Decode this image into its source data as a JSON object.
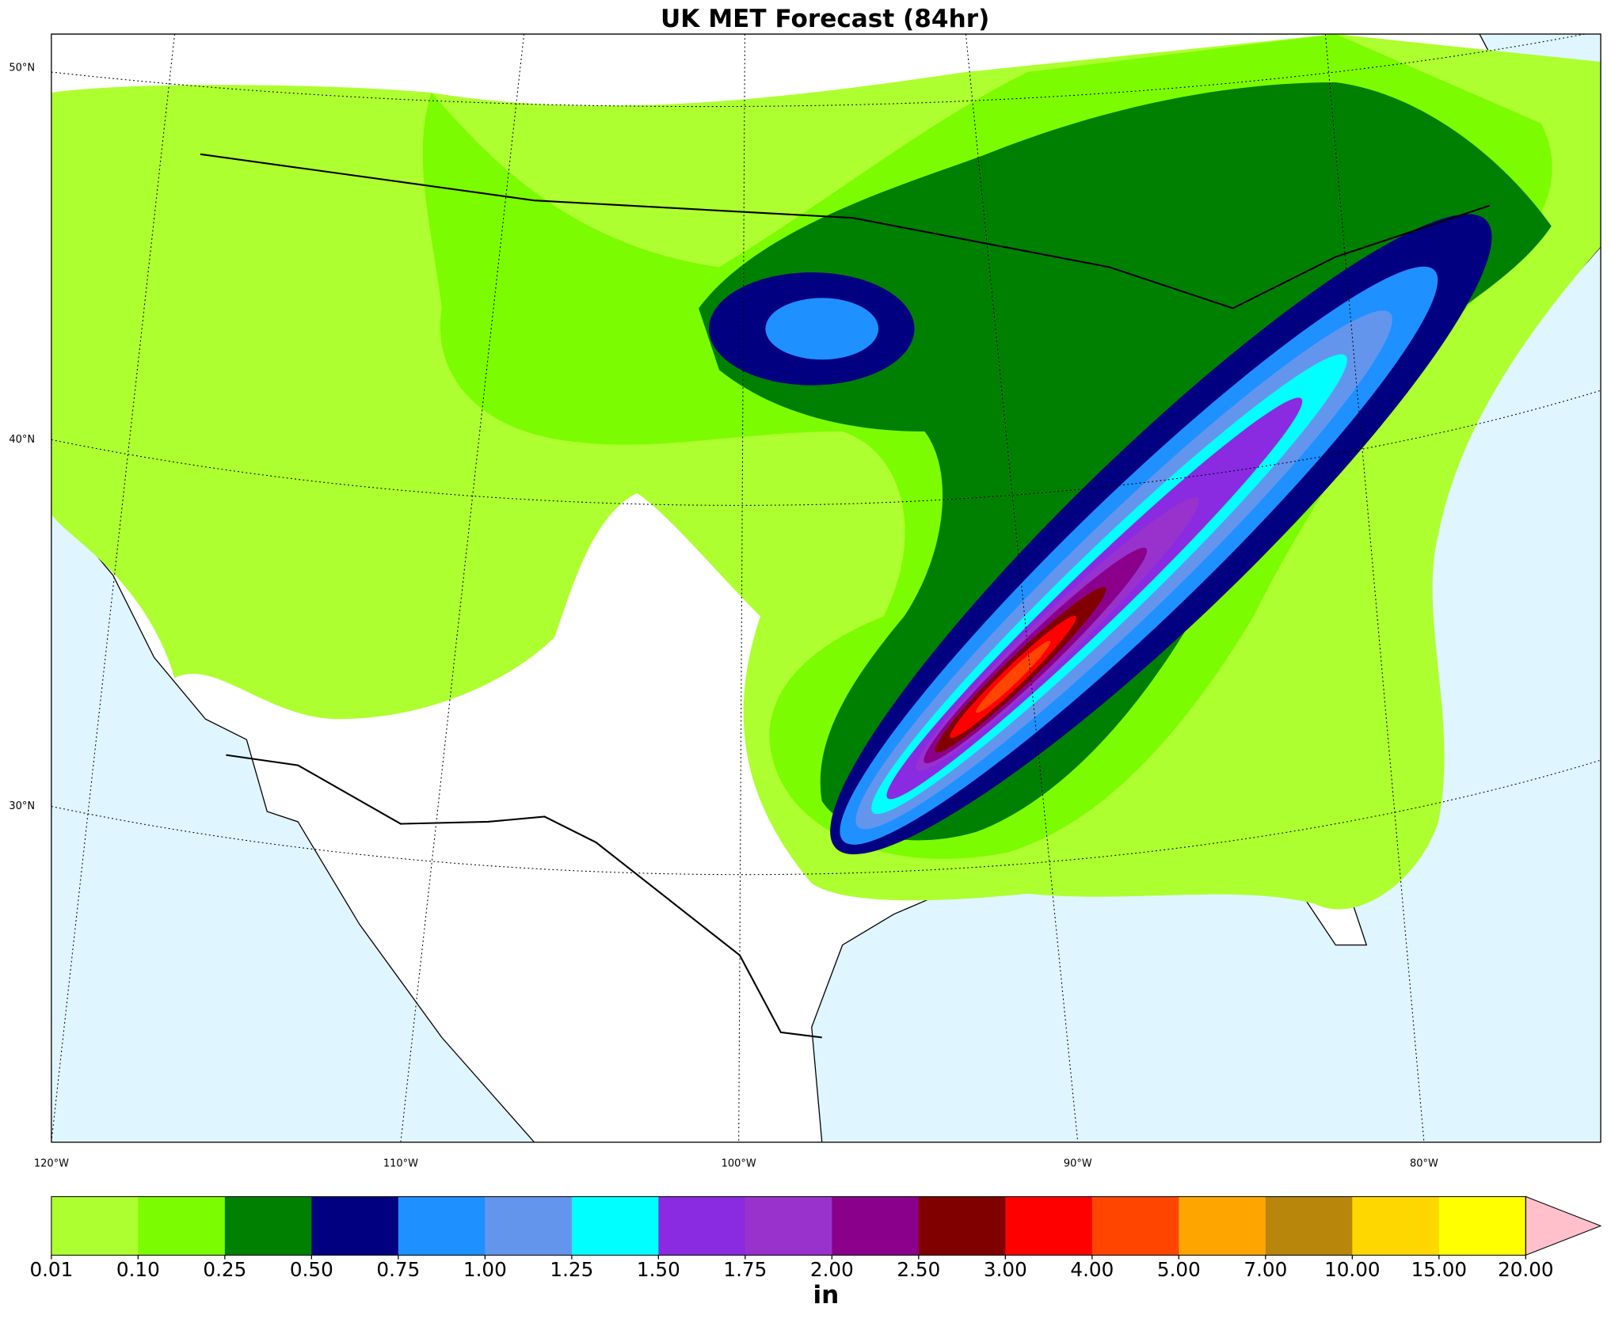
{
  "title": "UK MET Forecast (84hr)",
  "lat_labels": [
    "50°N",
    "40°N",
    "30°N"
  ],
  "lon_labels": [
    "120°W",
    "110°W",
    "100°W",
    "90°W",
    "80°W"
  ],
  "colorbar": {
    "levels": [
      "0.01",
      "0.10",
      "0.25",
      "0.50",
      "0.75",
      "1.00",
      "1.25",
      "1.50",
      "1.75",
      "2.00",
      "2.50",
      "3.00",
      "4.00",
      "5.00",
      "7.00",
      "10.00",
      "15.00",
      "20.00"
    ],
    "colors": [
      "#adff2f",
      "#7cfc00",
      "#008000",
      "#000080",
      "#1e90ff",
      "#6495ed",
      "#00ffff",
      "#8a2be2",
      "#9932cc",
      "#8b008b",
      "#800000",
      "#ff0000",
      "#ff4500",
      "#ffa500",
      "#b8860b",
      "#ffd700",
      "#ffff00"
    ],
    "extend_color": "#ffc0cb",
    "unit": "in"
  }
}
